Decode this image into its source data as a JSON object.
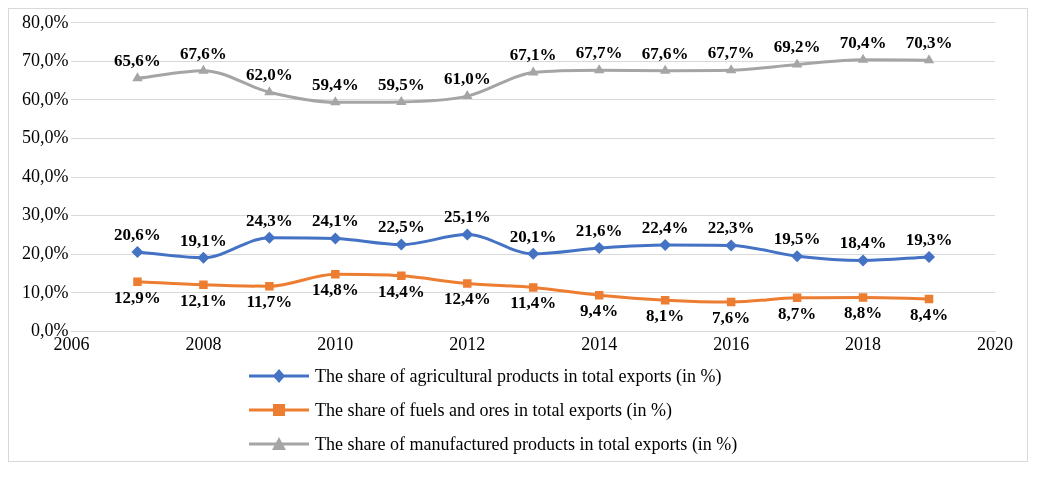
{
  "chart_data": {
    "type": "line",
    "x": [
      2007,
      2008,
      2009,
      2010,
      2011,
      2012,
      2013,
      2014,
      2015,
      2016,
      2017,
      2018,
      2019
    ],
    "series": [
      {
        "name": "The share of agricultural products in total exports (in %)",
        "color": "#4472c4",
        "marker": "diamond",
        "values": [
          20.6,
          19.1,
          24.3,
          24.1,
          22.5,
          25.1,
          20.1,
          21.6,
          22.4,
          22.3,
          19.5,
          18.4,
          19.3
        ],
        "value_labels": [
          "20,6%",
          "19,1%",
          "24,3%",
          "24,1%",
          "22,5%",
          "25,1%",
          "20,1%",
          "21,6%",
          "22,4%",
          "22,3%",
          "19,5%",
          "18,4%",
          "19,3%"
        ]
      },
      {
        "name": "The share of fuels and ores in total exports (in %)",
        "color": "#ed7d31",
        "marker": "square",
        "values": [
          12.9,
          12.1,
          11.7,
          14.8,
          14.4,
          12.4,
          11.4,
          9.4,
          8.1,
          7.6,
          8.7,
          8.8,
          8.4
        ],
        "value_labels": [
          "12,9%",
          "12,1%",
          "11,7%",
          "14,8%",
          "14,4%",
          "12,4%",
          "11,4%",
          "9,4%",
          "8,1%",
          "7,6%",
          "8,7%",
          "8,8%",
          "8,4%"
        ]
      },
      {
        "name": "The share of manufactured products in total exports (in %)",
        "color": "#a5a5a5",
        "marker": "triangle",
        "values": [
          65.6,
          67.6,
          62.0,
          59.4,
          59.5,
          61.0,
          67.1,
          67.7,
          67.6,
          67.7,
          69.2,
          70.4,
          70.3
        ],
        "value_labels": [
          "65,6%",
          "67,6%",
          "62,0%",
          "59,4%",
          "59,5%",
          "61,0%",
          "67,1%",
          "67,7%",
          "67,6%",
          "67,7%",
          "69,2%",
          "70,4%",
          "70,3%"
        ]
      }
    ],
    "xlim": [
      2006,
      2020
    ],
    "xticks": [
      2006,
      2008,
      2010,
      2012,
      2014,
      2016,
      2018,
      2020
    ],
    "ylim": [
      0,
      80
    ],
    "yticks": [
      {
        "value": 0,
        "label": "0,0%"
      },
      {
        "value": 10,
        "label": "10,0%"
      },
      {
        "value": 20,
        "label": "20,0%"
      },
      {
        "value": 30,
        "label": "30,0%"
      },
      {
        "value": 40,
        "label": "40,0%"
      },
      {
        "value": 50,
        "label": "50,0%"
      },
      {
        "value": 60,
        "label": "60,0%"
      },
      {
        "value": 70,
        "label": "70,0%"
      },
      {
        "value": 80,
        "label": "80,0%"
      }
    ],
    "grid": "y",
    "legend": "bottom",
    "line_style": "solid"
  }
}
